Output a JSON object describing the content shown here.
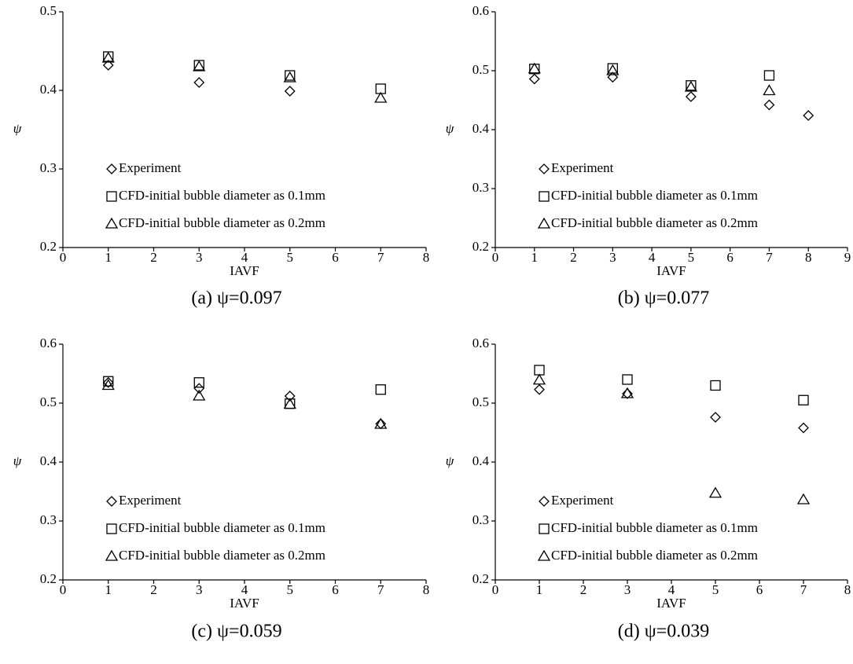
{
  "chart_data": [
    {
      "type": "scatter",
      "title": "(a) ψ=0.097",
      "xlabel": "IAVF",
      "ylabel": "ψ",
      "xlim": [
        0,
        8
      ],
      "xticks": [
        0,
        1,
        2,
        3,
        4,
        5,
        6,
        7,
        8
      ],
      "ylim": [
        0.2,
        0.5
      ],
      "yticks": [
        0.2,
        0.3,
        0.4,
        0.5
      ],
      "legend": "lower left",
      "series": [
        {
          "name": "Experiment",
          "color": "#000000",
          "marker": "diamond",
          "x": [
            1,
            3,
            5
          ],
          "values": [
            0.432,
            0.41,
            0.399
          ]
        },
        {
          "name": "CFD-initial bubble diameter as 0.1mm",
          "color": "#000000",
          "marker": "square",
          "x": [
            1,
            3,
            5,
            7
          ],
          "values": [
            0.443,
            0.432,
            0.419,
            0.402
          ]
        },
        {
          "name": "CFD-initial bubble diameter as 0.2mm",
          "color": "#000000",
          "marker": "triangle",
          "x": [
            1,
            3,
            5,
            7
          ],
          "values": [
            0.441,
            0.43,
            0.416,
            0.39
          ]
        }
      ]
    },
    {
      "type": "scatter",
      "title": "(b) ψ=0.077",
      "xlabel": "IAVF",
      "ylabel": "ψ",
      "xlim": [
        0,
        9
      ],
      "xticks": [
        0,
        1,
        2,
        3,
        4,
        5,
        6,
        7,
        8,
        9
      ],
      "ylim": [
        0.2,
        0.6
      ],
      "yticks": [
        0.2,
        0.3,
        0.4,
        0.5,
        0.6
      ],
      "legend": "lower left",
      "series": [
        {
          "name": "Experiment",
          "color": "#000000",
          "marker": "diamond",
          "x": [
            1,
            3,
            5,
            7,
            8
          ],
          "values": [
            0.486,
            0.489,
            0.456,
            0.442,
            0.424
          ]
        },
        {
          "name": "CFD-initial bubble diameter as 0.1mm",
          "color": "#000000",
          "marker": "square",
          "x": [
            1,
            3,
            5,
            7
          ],
          "values": [
            0.503,
            0.504,
            0.475,
            0.492
          ]
        },
        {
          "name": "CFD-initial bubble diameter as 0.2mm",
          "color": "#000000",
          "marker": "triangle",
          "x": [
            1,
            3,
            5,
            7
          ],
          "values": [
            0.503,
            0.5,
            0.472,
            0.466
          ]
        }
      ]
    },
    {
      "type": "scatter",
      "title": "(c) ψ=0.059",
      "xlabel": "IAVF",
      "ylabel": "ψ",
      "xlim": [
        0,
        8
      ],
      "xticks": [
        0,
        1,
        2,
        3,
        4,
        5,
        6,
        7,
        8
      ],
      "ylim": [
        0.2,
        0.6
      ],
      "yticks": [
        0.2,
        0.3,
        0.4,
        0.5,
        0.6
      ],
      "legend": "lower left",
      "series": [
        {
          "name": "Experiment",
          "color": "#000000",
          "marker": "diamond",
          "x": [
            1,
            3,
            5,
            7
          ],
          "values": [
            0.535,
            0.525,
            0.512,
            0.465
          ]
        },
        {
          "name": "CFD-initial bubble diameter as 0.1mm",
          "color": "#000000",
          "marker": "square",
          "x": [
            1,
            3,
            5,
            7
          ],
          "values": [
            0.537,
            0.535,
            0.499,
            0.523
          ]
        },
        {
          "name": "CFD-initial bubble diameter as 0.2mm",
          "color": "#000000",
          "marker": "triangle",
          "x": [
            1,
            3,
            5,
            7
          ],
          "values": [
            0.53,
            0.512,
            0.498,
            0.464
          ]
        }
      ]
    },
    {
      "type": "scatter",
      "title": "(d) ψ=0.039",
      "xlabel": "IAVF",
      "ylabel": "ψ",
      "xlim": [
        0,
        8
      ],
      "xticks": [
        0,
        1,
        2,
        3,
        4,
        5,
        6,
        7,
        8
      ],
      "ylim": [
        0.2,
        0.6
      ],
      "yticks": [
        0.2,
        0.3,
        0.4,
        0.5,
        0.6
      ],
      "legend": "lower left",
      "series": [
        {
          "name": "Experiment",
          "color": "#000000",
          "marker": "diamond",
          "x": [
            1,
            3,
            5,
            7
          ],
          "values": [
            0.523,
            0.516,
            0.476,
            0.458
          ]
        },
        {
          "name": "CFD-initial bubble diameter as 0.1mm",
          "color": "#000000",
          "marker": "square",
          "x": [
            1,
            3,
            5,
            7
          ],
          "values": [
            0.556,
            0.54,
            0.53,
            0.505
          ]
        },
        {
          "name": "CFD-initial bubble diameter as 0.2mm",
          "color": "#000000",
          "marker": "triangle",
          "x": [
            1,
            3,
            5,
            7
          ],
          "values": [
            0.539,
            0.516,
            0.347,
            0.336
          ]
        }
      ]
    }
  ]
}
